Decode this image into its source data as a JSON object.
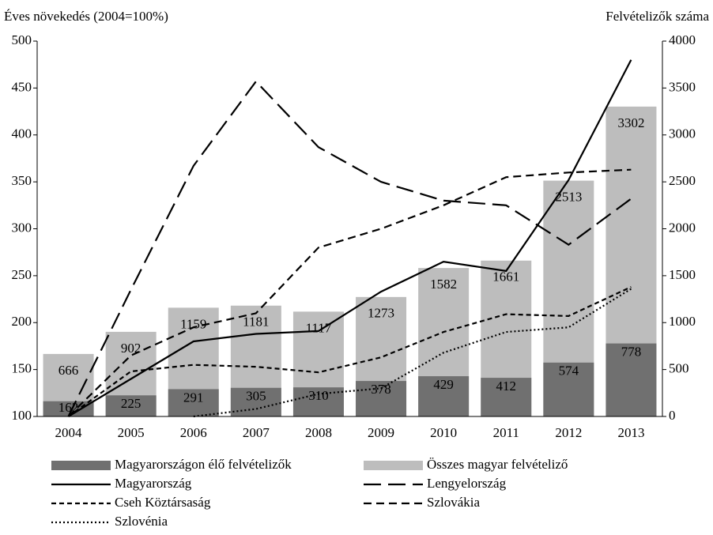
{
  "chart_data": {
    "type": "bar",
    "y_label": "Éves növekedés (2004=100%)",
    "y2_label": "Felvételizők száma",
    "categories": [
      "2004",
      "2005",
      "2006",
      "2007",
      "2008",
      "2009",
      "2010",
      "2011",
      "2012",
      "2013"
    ],
    "ylim": [
      100,
      500
    ],
    "yticks": [
      100,
      150,
      200,
      250,
      300,
      350,
      400,
      450,
      500
    ],
    "y2lim": [
      0,
      4000
    ],
    "y2ticks": [
      0,
      500,
      1000,
      1500,
      2000,
      2500,
      3000,
      3500,
      4000
    ],
    "series": [
      {
        "name": "Összes magyar felvételiző",
        "type": "bar",
        "axis": "y2",
        "color": "#bdbdbd",
        "values": [
          666,
          902,
          1159,
          1181,
          1117,
          1273,
          1582,
          1661,
          2513,
          3302
        ]
      },
      {
        "name": "Magyarországon élő felvételizők",
        "type": "bar",
        "axis": "y2",
        "color": "#707070",
        "values": [
          162,
          225,
          291,
          305,
          310,
          378,
          429,
          412,
          574,
          778
        ]
      },
      {
        "name": "Magyarország",
        "type": "line",
        "color": "#000000",
        "dash": "solid",
        "values": [
          100,
          140,
          180,
          188,
          191,
          233,
          265,
          255,
          352,
          480
        ]
      },
      {
        "name": "Lengyelország",
        "type": "line",
        "color": "#000000",
        "dash": "longdash",
        "values": [
          100,
          235,
          367,
          457,
          387,
          350,
          330,
          325,
          283,
          332
        ]
      },
      {
        "name": "Cseh Köztársaság",
        "type": "line",
        "color": "#000000",
        "dash": "shortdash",
        "values": [
          100,
          148,
          155,
          153,
          147,
          163,
          190,
          209,
          207,
          238
        ]
      },
      {
        "name": "Szlovákia",
        "type": "line",
        "color": "#000000",
        "dash": "dash",
        "values": [
          100,
          165,
          195,
          210,
          280,
          300,
          325,
          355,
          360,
          363
        ]
      },
      {
        "name": "Szlovénia",
        "type": "line",
        "color": "#000000",
        "dash": "dot",
        "values": [
          null,
          null,
          100,
          108,
          124,
          130,
          168,
          190,
          195,
          236
        ]
      }
    ]
  }
}
